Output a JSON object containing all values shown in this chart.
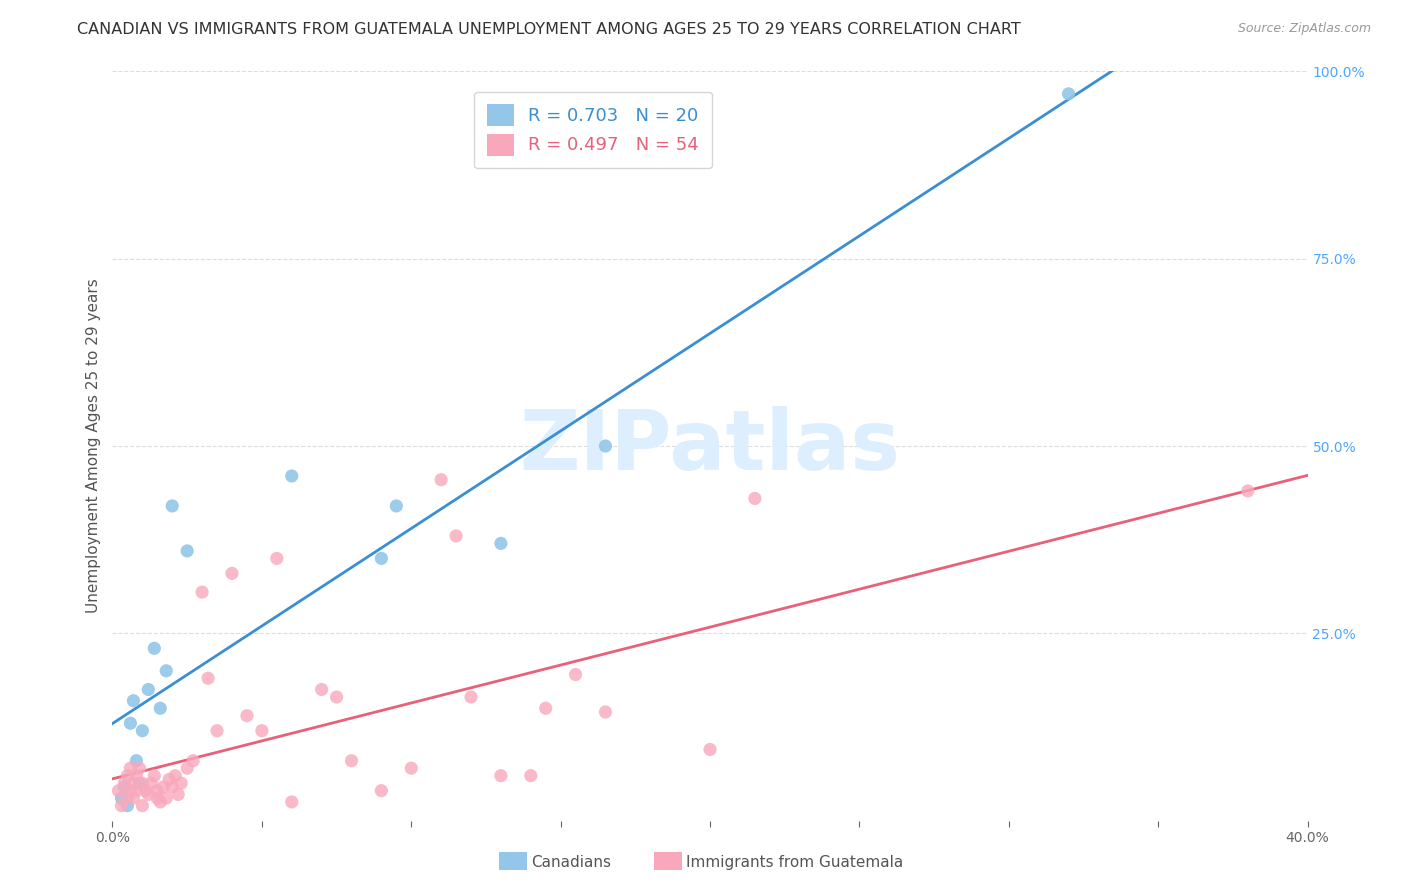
{
  "title": "CANADIAN VS IMMIGRANTS FROM GUATEMALA UNEMPLOYMENT AMONG AGES 25 TO 29 YEARS CORRELATION CHART",
  "source": "Source: ZipAtlas.com",
  "ylabel": "Unemployment Among Ages 25 to 29 years",
  "xlim": [
    0.0,
    0.4
  ],
  "ylim": [
    0.0,
    1.0
  ],
  "xtick_positions": [
    0.0,
    0.05,
    0.1,
    0.15,
    0.2,
    0.25,
    0.3,
    0.35,
    0.4
  ],
  "xtick_labels": [
    "0.0%",
    "",
    "",
    "",
    "",
    "",
    "",
    "",
    "40.0%"
  ],
  "yticks_right": [
    0.25,
    0.5,
    0.75,
    1.0
  ],
  "ytick_labels_right": [
    "25.0%",
    "50.0%",
    "75.0%",
    "100.0%"
  ],
  "canadian_R": 0.703,
  "canadian_N": 20,
  "guatemalan_R": 0.497,
  "guatemalan_N": 54,
  "canadian_color": "#93c6e8",
  "guatemalan_color": "#f9a8bc",
  "canadian_line_color": "#3a8fd1",
  "guatemalan_line_color": "#e8607a",
  "background_color": "#ffffff",
  "watermark_text": "ZIPatlas",
  "watermark_color": "#ddeeff",
  "grid_color": "#dddddd",
  "canadian_x": [
    0.003,
    0.004,
    0.005,
    0.006,
    0.007,
    0.008,
    0.009,
    0.01,
    0.012,
    0.014,
    0.016,
    0.018,
    0.02,
    0.025,
    0.06,
    0.09,
    0.095,
    0.13,
    0.165,
    0.32
  ],
  "canadian_y": [
    0.03,
    0.045,
    0.02,
    0.13,
    0.16,
    0.08,
    0.05,
    0.12,
    0.175,
    0.23,
    0.15,
    0.2,
    0.42,
    0.36,
    0.46,
    0.35,
    0.42,
    0.37,
    0.5,
    0.97
  ],
  "guatemalan_x": [
    0.002,
    0.003,
    0.004,
    0.005,
    0.005,
    0.006,
    0.006,
    0.007,
    0.007,
    0.008,
    0.008,
    0.009,
    0.01,
    0.01,
    0.011,
    0.012,
    0.013,
    0.014,
    0.015,
    0.015,
    0.016,
    0.017,
    0.018,
    0.019,
    0.02,
    0.021,
    0.022,
    0.023,
    0.025,
    0.027,
    0.03,
    0.032,
    0.035,
    0.04,
    0.045,
    0.05,
    0.055,
    0.06,
    0.07,
    0.075,
    0.08,
    0.09,
    0.1,
    0.11,
    0.115,
    0.12,
    0.13,
    0.14,
    0.145,
    0.155,
    0.165,
    0.2,
    0.215,
    0.38
  ],
  "guatemalan_y": [
    0.04,
    0.02,
    0.05,
    0.06,
    0.03,
    0.07,
    0.04,
    0.05,
    0.03,
    0.06,
    0.04,
    0.07,
    0.02,
    0.05,
    0.04,
    0.035,
    0.05,
    0.06,
    0.04,
    0.03,
    0.025,
    0.045,
    0.03,
    0.055,
    0.045,
    0.06,
    0.035,
    0.05,
    0.07,
    0.08,
    0.305,
    0.19,
    0.12,
    0.33,
    0.14,
    0.12,
    0.35,
    0.025,
    0.175,
    0.165,
    0.08,
    0.04,
    0.07,
    0.455,
    0.38,
    0.165,
    0.06,
    0.06,
    0.15,
    0.195,
    0.145,
    0.095,
    0.43,
    0.44
  ],
  "legend_box_color": "#ffffff",
  "legend_border_color": "#cccccc",
  "title_fontsize": 11.5,
  "axis_label_fontsize": 11,
  "tick_fontsize": 10,
  "legend_fontsize": 13,
  "right_tick_color": "#4da6ff"
}
